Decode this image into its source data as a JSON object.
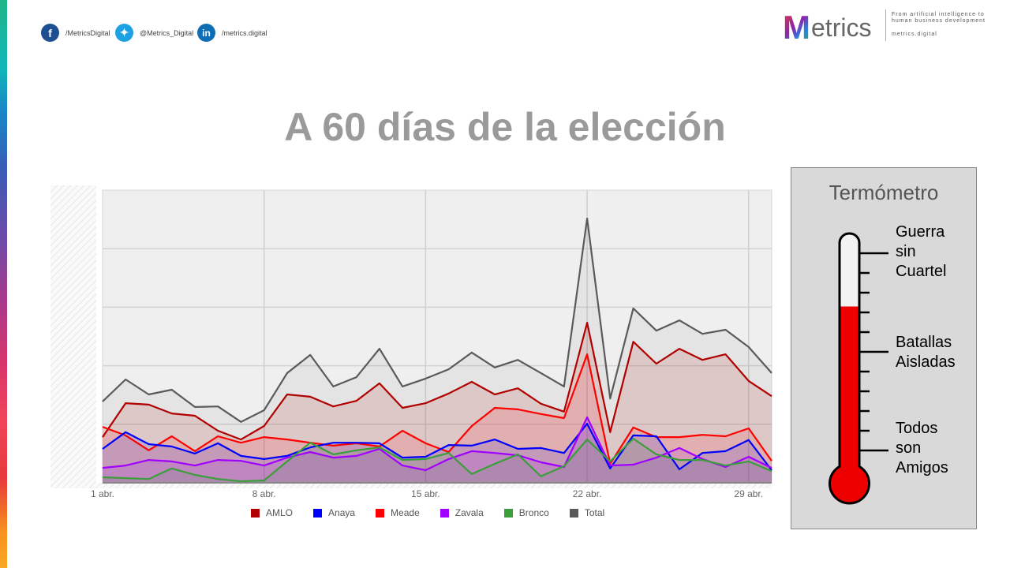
{
  "social": {
    "facebook": "/MetricsDigital",
    "twitter": "@Metrics_Digital",
    "linkedin": "/metrics.digital"
  },
  "logo": {
    "name": "Metrics",
    "tagline": "From artificial intelligence to human business development",
    "url": "metrics.digital"
  },
  "title": "A 60 días de la elección",
  "chart_data": {
    "type": "area",
    "title": "A 60 días de la elección",
    "xlabel": "",
    "ylabel": "",
    "ylim": [
      0,
      100
    ],
    "grid": true,
    "legend_position": "bottom",
    "x": [
      "1 abr.",
      "2 abr.",
      "3 abr.",
      "4 abr.",
      "5 abr.",
      "6 abr.",
      "7 abr.",
      "8 abr.",
      "9 abr.",
      "10 abr.",
      "11 abr.",
      "12 abr.",
      "13 abr.",
      "14 abr.",
      "15 abr.",
      "16 abr.",
      "17 abr.",
      "18 abr.",
      "19 abr.",
      "20 abr.",
      "21 abr.",
      "22 abr.",
      "23 abr.",
      "24 abr.",
      "25 abr.",
      "26 abr.",
      "27 abr.",
      "28 abr.",
      "29 abr.",
      "30 abr."
    ],
    "xticks": [
      "1 abr.",
      "8 abr.",
      "15 abr.",
      "22 abr.",
      "29 abr."
    ],
    "xtick_index": [
      0,
      7,
      14,
      21,
      28
    ],
    "series": [
      {
        "name": "Total",
        "color": "#5a5a5a",
        "values": [
          27.8,
          35.3,
          30.2,
          31.8,
          25.9,
          26.1,
          20.8,
          24.8,
          37.5,
          43.7,
          32.9,
          36.1,
          45.8,
          32.9,
          35.6,
          38.8,
          44.5,
          39.4,
          42.0,
          37.5,
          32.9,
          90.3,
          28.8,
          59.6,
          52.0,
          55.5,
          50.9,
          52.3,
          46.4,
          37.5
        ]
      },
      {
        "name": "AMLO",
        "color": "#b00000",
        "values": [
          15.6,
          27.2,
          26.7,
          23.7,
          22.9,
          17.8,
          14.8,
          19.4,
          30.2,
          29.4,
          26.1,
          28.0,
          34.0,
          25.6,
          27.2,
          30.5,
          34.5,
          30.2,
          32.3,
          27.0,
          24.3,
          54.7,
          17.3,
          48.2,
          40.7,
          45.8,
          42.0,
          43.9,
          34.8,
          29.6
        ]
      },
      {
        "name": "Meade",
        "color": "#ff0000",
        "values": [
          19.1,
          16.2,
          11.1,
          15.9,
          10.8,
          15.9,
          13.7,
          15.6,
          14.8,
          13.7,
          12.7,
          13.5,
          12.4,
          17.8,
          13.5,
          10.5,
          19.4,
          25.6,
          25.1,
          23.5,
          22.1,
          43.9,
          6.5,
          18.9,
          15.6,
          15.6,
          16.4,
          15.9,
          18.6,
          7.5
        ]
      },
      {
        "name": "Anaya",
        "color": "#0000ff",
        "values": [
          11.6,
          17.3,
          13.2,
          12.4,
          10.0,
          13.5,
          9.2,
          8.1,
          9.2,
          12.1,
          13.7,
          13.7,
          13.5,
          8.6,
          8.9,
          12.9,
          12.7,
          14.8,
          11.6,
          11.9,
          10.2,
          20.2,
          4.9,
          16.2,
          15.9,
          4.6,
          10.2,
          10.8,
          14.6,
          4.3
        ]
      },
      {
        "name": "Zavala",
        "color": "#a000ff",
        "values": [
          5.1,
          5.9,
          7.8,
          7.3,
          5.9,
          7.8,
          7.5,
          5.9,
          8.6,
          10.5,
          8.6,
          9.2,
          11.6,
          5.9,
          4.3,
          8.1,
          10.8,
          10.2,
          9.4,
          7.0,
          5.4,
          22.4,
          5.9,
          6.2,
          8.6,
          11.9,
          8.1,
          5.4,
          8.9,
          5.1
        ]
      },
      {
        "name": "Bronco",
        "color": "#3a9e3a",
        "values": [
          1.9,
          1.6,
          1.3,
          4.9,
          2.7,
          1.3,
          0.5,
          0.8,
          7.3,
          13.7,
          9.7,
          11.1,
          12.1,
          7.8,
          8.1,
          10.2,
          3.0,
          6.5,
          9.7,
          2.2,
          5.7,
          14.8,
          7.3,
          15.1,
          9.7,
          7.8,
          7.8,
          5.9,
          7.3,
          4.0
        ]
      }
    ],
    "legend": [
      "AMLO",
      "Anaya",
      "Meade",
      "Zavala",
      "Bronco",
      "Total"
    ]
  },
  "legend": [
    {
      "label": "AMLO",
      "color": "#b00000"
    },
    {
      "label": "Anaya",
      "color": "#0000ff"
    },
    {
      "label": "Meade",
      "color": "#ff0000"
    },
    {
      "label": "Zavala",
      "color": "#a000ff"
    },
    {
      "label": "Bronco",
      "color": "#3a9e3a"
    },
    {
      "label": "Total",
      "color": "#5a5a5a"
    }
  ],
  "thermometer": {
    "title": "Termómetro",
    "level": 0.73,
    "labels": {
      "top": "Guerra sin Cuartel",
      "middle": "Batallas Aisladas",
      "bottom": "Todos son Amigos"
    },
    "top_lines": [
      "Guerra",
      "sin",
      "Cuartel"
    ],
    "middle_lines": [
      "Batallas",
      "Aisladas"
    ],
    "bottom_lines": [
      "Todos",
      "son",
      "Amigos"
    ]
  }
}
